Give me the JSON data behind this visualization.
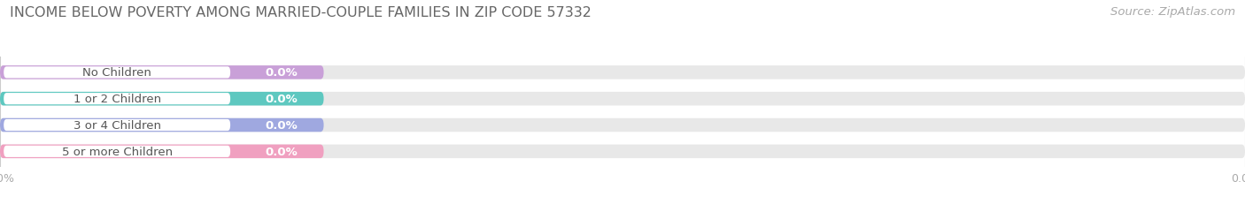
{
  "title": "INCOME BELOW POVERTY AMONG MARRIED-COUPLE FAMILIES IN ZIP CODE 57332",
  "source": "Source: ZipAtlas.com",
  "categories": [
    "No Children",
    "1 or 2 Children",
    "3 or 4 Children",
    "5 or more Children"
  ],
  "values": [
    0.0,
    0.0,
    0.0,
    0.0
  ],
  "bar_colors": [
    "#c9a0d8",
    "#5ec8c0",
    "#9fa8e0",
    "#f0a0c0"
  ],
  "background_color": "#ffffff",
  "bar_bg_color": "#e8e8e8",
  "title_fontsize": 11.5,
  "label_fontsize": 9.5,
  "value_fontsize": 9.5,
  "tick_fontsize": 9,
  "source_fontsize": 9.5,
  "tick_color": "#aaaaaa",
  "title_color": "#666666",
  "source_color": "#aaaaaa"
}
